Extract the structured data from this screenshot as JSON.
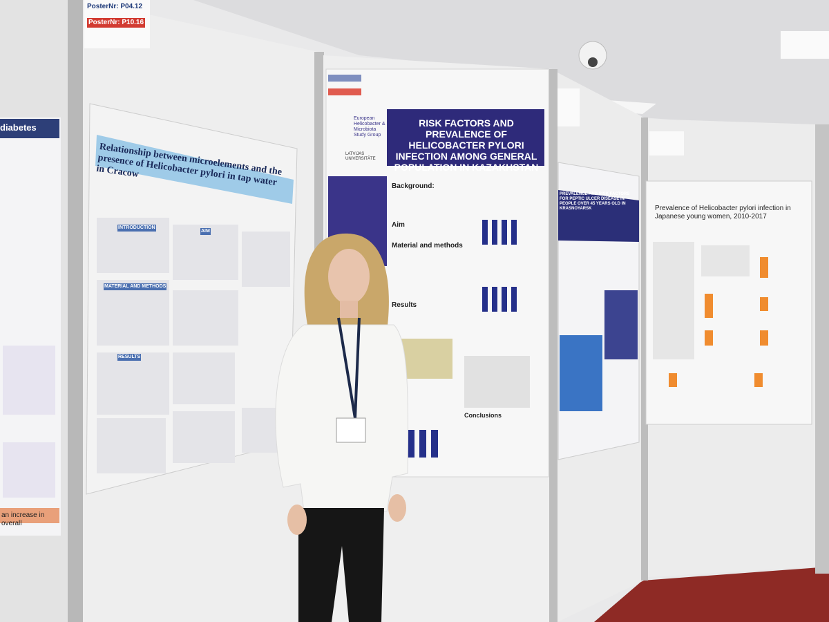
{
  "left_edge_poster": {
    "title": "diabetes",
    "footer": "an increase in overall"
  },
  "poster_labels": [
    "PosterNr: P04.12",
    "PosterNr: P10.16"
  ],
  "left_poster": {
    "title": "Relationship between microelements and the presence of Helicobacter pylori in tap water in Cracow",
    "sections": [
      "INTRODUCTION",
      "AIM",
      "MATERIAL AND METHODS",
      "RESULTS"
    ]
  },
  "center_poster": {
    "group": "European Helicobacter & Microbiota Study Group",
    "university": "LATVIJAS UNIVERSITĀTE",
    "title": "RISK FACTORS AND PREVALENCE OF HELICOBACTER PYLORI INFECTION AMONG GENERAL POPULATION IN KAZAKHSTAN",
    "sections": [
      "Background:",
      "Aim",
      "Material and methods",
      "Results",
      "Conclusions"
    ]
  },
  "right_poster": {
    "title": "PREVALENCE AND RISK FACTORS FOR PEPTIC ULCER DISEASE IN PEOPLE OVER 45 YEARS OLD IN KRASNOYARSK"
  },
  "far_right_poster": {
    "title": "Prevalence of Helicobacter pylori infection in Japanese young women, 2010-2017"
  }
}
